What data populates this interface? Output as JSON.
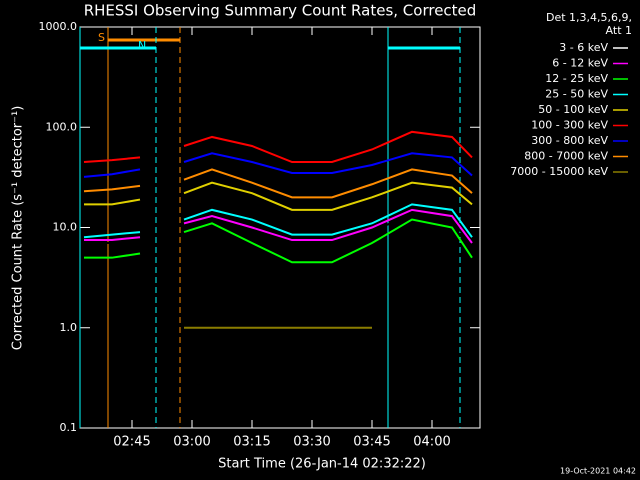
{
  "chart_data": {
    "type": "line",
    "title": "RHESSI Observing Summary Count Rates, Corrected",
    "x_label": "Start Time (26-Jan-14 02:32:22)",
    "y_label": "Corrected Count Rate (s⁻¹ detector⁻¹)",
    "legend_title": [
      "Det 1,3,4,5,6,9,",
      "Att 1"
    ],
    "footer": "19-Oct-2021 04:42",
    "log_y": true,
    "legend": "outside right",
    "xlim": [
      "02:32",
      "04:12"
    ],
    "xticks": [
      "02:45",
      "03:00",
      "03:15",
      "03:30",
      "03:45",
      "04:00"
    ],
    "ylim": [
      0.1,
      1000
    ],
    "yticks": [
      {
        "value": 0.1,
        "label": "0.1"
      },
      {
        "value": 1,
        "label": "1.0"
      },
      {
        "value": 10,
        "label": "10.0"
      },
      {
        "value": 100,
        "label": "100.0"
      },
      {
        "value": 1000,
        "label": "1000.0"
      }
    ],
    "x": [
      "02:33",
      "02:40",
      "02:47",
      "02:52",
      "02:58",
      "03:05",
      "03:15",
      "03:25",
      "03:35",
      "03:45",
      "03:55",
      "04:05",
      "04:10"
    ],
    "series": [
      {
        "name": "3 - 6 keV",
        "color": "#000000",
        "values": [
          7,
          7,
          7.5,
          null,
          10,
          12,
          9,
          6.5,
          6.5,
          9,
          14,
          12,
          6.5
        ]
      },
      {
        "name": "6 - 12 keV",
        "color": "#ff00ff",
        "values": [
          7.5,
          7.5,
          8,
          null,
          11,
          13,
          10,
          7.5,
          7.5,
          10,
          15,
          13,
          7
        ]
      },
      {
        "name": "12 - 25 keV",
        "color": "#00ff00",
        "values": [
          5,
          5,
          5.5,
          null,
          9,
          11,
          7,
          4.5,
          4.5,
          7,
          12,
          10,
          5
        ]
      },
      {
        "name": "25 - 50 keV",
        "color": "#00ffff",
        "values": [
          8,
          8.5,
          9,
          null,
          12,
          15,
          12,
          8.5,
          8.5,
          11,
          17,
          15,
          8
        ]
      },
      {
        "name": "50 - 100 keV",
        "color": "#e0d000",
        "values": [
          17,
          17,
          19,
          null,
          22,
          28,
          22,
          15,
          15,
          20,
          28,
          25,
          17
        ]
      },
      {
        "name": "100 - 300 keV",
        "color": "#ff0000",
        "values": [
          45,
          47,
          50,
          null,
          65,
          80,
          65,
          45,
          45,
          60,
          90,
          80,
          50
        ]
      },
      {
        "name": "300 - 800 keV",
        "color": "#0000ff",
        "values": [
          32,
          34,
          38,
          null,
          45,
          55,
          45,
          35,
          35,
          42,
          55,
          50,
          33
        ]
      },
      {
        "name": "800 - 7000 keV",
        "color": "#ff8c00",
        "values": [
          23,
          24,
          26,
          null,
          30,
          38,
          28,
          20,
          20,
          27,
          38,
          33,
          22
        ]
      },
      {
        "name": "7000 - 15000 keV",
        "color": "#8b7d00",
        "values": [
          null,
          null,
          null,
          null,
          1,
          1,
          1,
          1,
          1,
          1,
          null,
          null,
          null
        ]
      }
    ],
    "intervals": [
      {
        "label": "S",
        "color": "#ff8c00",
        "start": "02:39",
        "end": "02:57"
      },
      {
        "label": "N",
        "color": "#00ffff",
        "start": "02:32",
        "end": "02:51"
      },
      {
        "color": "#00ffff",
        "start": "03:49",
        "end": "04:07"
      }
    ]
  }
}
